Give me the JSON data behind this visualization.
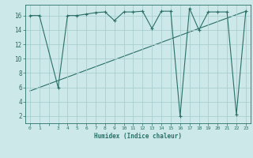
{
  "xlabel": "Humidex (Indice chaleur)",
  "bg_color": "#cce8e8",
  "line_color": "#2a7068",
  "grid_color": "#aacece",
  "xticks": [
    0,
    1,
    2,
    3,
    4,
    5,
    6,
    7,
    8,
    9,
    10,
    11,
    12,
    13,
    14,
    15,
    16,
    17,
    18,
    19,
    20,
    21,
    22,
    23
  ],
  "xticklabels": [
    "0",
    "1",
    "",
    "3",
    "4",
    "5",
    "6",
    "7",
    "8",
    "9",
    "10",
    "11",
    "12",
    "13",
    "14",
    "15",
    "16",
    "17",
    "18",
    "19",
    "20",
    "21",
    "22",
    "23"
  ],
  "yticks": [
    2,
    4,
    6,
    8,
    10,
    12,
    14,
    16
  ],
  "xlim": [
    -0.5,
    23.5
  ],
  "ylim": [
    1.0,
    17.5
  ],
  "series1_x": [
    0,
    1,
    3,
    4,
    5,
    6,
    7,
    8,
    9,
    10,
    11,
    12,
    13,
    14,
    15,
    16,
    17,
    18,
    19,
    20,
    21,
    22,
    23
  ],
  "series1_y": [
    16.0,
    16.0,
    6.0,
    16.0,
    16.0,
    16.2,
    16.4,
    16.5,
    15.3,
    16.5,
    16.5,
    16.6,
    14.2,
    16.6,
    16.6,
    2.0,
    17.0,
    14.0,
    16.5,
    16.5,
    16.5,
    2.2,
    16.6
  ],
  "series2_x": [
    0,
    23
  ],
  "series2_y": [
    5.5,
    16.6
  ]
}
